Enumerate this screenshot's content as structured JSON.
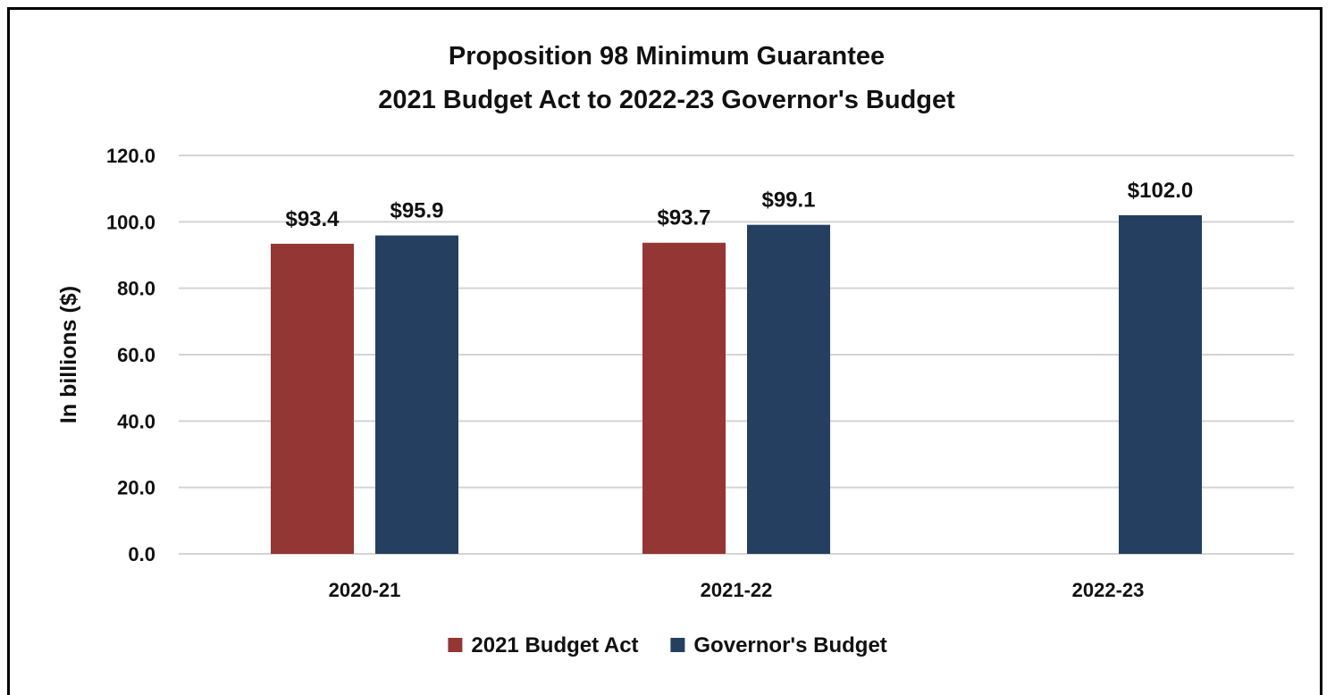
{
  "chart_data": {
    "type": "bar",
    "title": "Proposition 98 Minimum Guarantee",
    "subtitle": "2021 Budget Act to 2022-23 Governor's Budget",
    "xlabel": "",
    "ylabel": "In billions ($)",
    "ylim": [
      0,
      120
    ],
    "yticks": [
      "0.0",
      "20.0",
      "40.0",
      "60.0",
      "80.0",
      "100.0",
      "120.0"
    ],
    "categories": [
      "2020-21",
      "2021-22",
      "2022-23"
    ],
    "series": [
      {
        "name": "2021 Budget Act",
        "color": "#943634",
        "values": [
          93.4,
          93.7,
          null
        ],
        "labels": [
          "$93.4",
          "$93.7",
          ""
        ]
      },
      {
        "name": "Governor's Budget",
        "color": "#243F60",
        "values": [
          95.9,
          99.1,
          102.0
        ],
        "labels": [
          "$95.9",
          "$99.1",
          "$102.0"
        ]
      }
    ],
    "grid": true,
    "legend_position": "bottom"
  }
}
